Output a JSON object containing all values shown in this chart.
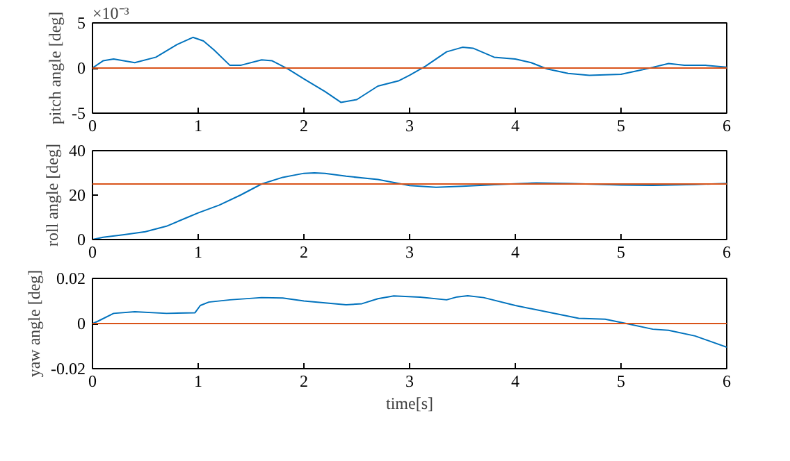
{
  "chart_data": [
    {
      "type": "line",
      "ylabel": "pitch angle [deg]",
      "annotations": [
        "×10⁻³"
      ],
      "xlim": [
        0,
        6
      ],
      "ylim": [
        -5,
        5
      ],
      "xticks": [
        0,
        1,
        2,
        3,
        4,
        5,
        6
      ],
      "yticks": [
        -5,
        0,
        5
      ],
      "grid": false,
      "ref_lines": [
        {
          "axis": "y",
          "value": 0,
          "color": "#d95319"
        }
      ],
      "series": [
        {
          "color": "#0072bd",
          "x": [
            0,
            0.1,
            0.2,
            0.4,
            0.6,
            0.8,
            0.95,
            1.05,
            1.15,
            1.3,
            1.4,
            1.6,
            1.7,
            1.85,
            2.0,
            2.2,
            2.35,
            2.5,
            2.7,
            2.9,
            3.0,
            3.15,
            3.35,
            3.5,
            3.6,
            3.8,
            4.0,
            4.15,
            4.3,
            4.5,
            4.7,
            5.0,
            5.2,
            5.45,
            5.6,
            5.8,
            6.0
          ],
          "values": [
            0,
            0.8,
            1.0,
            0.6,
            1.2,
            2.6,
            3.4,
            3.0,
            2.0,
            0.3,
            0.3,
            0.9,
            0.8,
            -0.1,
            -1.2,
            -2.6,
            -3.8,
            -3.5,
            -2.0,
            -1.4,
            -0.8,
            0.2,
            1.8,
            2.3,
            2.2,
            1.2,
            1.0,
            0.6,
            -0.1,
            -0.6,
            -0.8,
            -0.7,
            -0.2,
            0.5,
            0.3,
            0.3,
            0.1
          ]
        }
      ]
    },
    {
      "type": "line",
      "ylabel": "roll angle [deg]",
      "xlim": [
        0,
        6
      ],
      "ylim": [
        0,
        40
      ],
      "xticks": [
        0,
        1,
        2,
        3,
        4,
        5,
        6
      ],
      "yticks": [
        0,
        20,
        40
      ],
      "grid": false,
      "ref_lines": [
        {
          "axis": "y",
          "value": 25,
          "color": "#d95319"
        }
      ],
      "series": [
        {
          "color": "#0072bd",
          "x": [
            0,
            0.1,
            0.3,
            0.5,
            0.7,
            0.9,
            1.0,
            1.2,
            1.4,
            1.6,
            1.8,
            2.0,
            2.1,
            2.2,
            2.4,
            2.7,
            3.0,
            3.25,
            3.5,
            3.8,
            4.2,
            4.5,
            5.0,
            5.3,
            5.7,
            6.0
          ],
          "values": [
            0,
            1.0,
            2.2,
            3.5,
            6,
            10,
            12,
            15.5,
            20,
            25,
            28,
            29.8,
            30,
            29.8,
            28.5,
            27,
            24.3,
            23.5,
            24,
            24.7,
            25.5,
            25.2,
            24.5,
            24.4,
            24.8,
            25.2
          ]
        }
      ]
    },
    {
      "type": "line",
      "xlabel": "time[s]",
      "ylabel": "yaw angle [deg]",
      "xlim": [
        0,
        6
      ],
      "ylim": [
        -0.02,
        0.02
      ],
      "xticks": [
        0,
        1,
        2,
        3,
        4,
        5,
        6
      ],
      "yticks": [
        -0.02,
        0,
        0.02
      ],
      "grid": false,
      "ref_lines": [
        {
          "axis": "y",
          "value": 0,
          "color": "#d95319"
        }
      ],
      "series": [
        {
          "color": "#0072bd",
          "x": [
            0,
            0.05,
            0.2,
            0.4,
            0.7,
            0.97,
            1.02,
            1.1,
            1.3,
            1.6,
            1.8,
            2.0,
            2.4,
            2.55,
            2.7,
            2.85,
            3.1,
            3.35,
            3.45,
            3.55,
            3.7,
            4.0,
            4.6,
            4.85,
            5.05,
            5.3,
            5.45,
            5.7,
            6.0
          ],
          "values": [
            0,
            0.001,
            0.0045,
            0.0052,
            0.0045,
            0.0048,
            0.008,
            0.0095,
            0.0105,
            0.0115,
            0.0113,
            0.01,
            0.0083,
            0.0088,
            0.011,
            0.0122,
            0.0117,
            0.0105,
            0.0118,
            0.0123,
            0.0115,
            0.008,
            0.0023,
            0.0019,
            0.0,
            -0.0025,
            -0.003,
            -0.0055,
            -0.0105
          ]
        }
      ]
    }
  ]
}
